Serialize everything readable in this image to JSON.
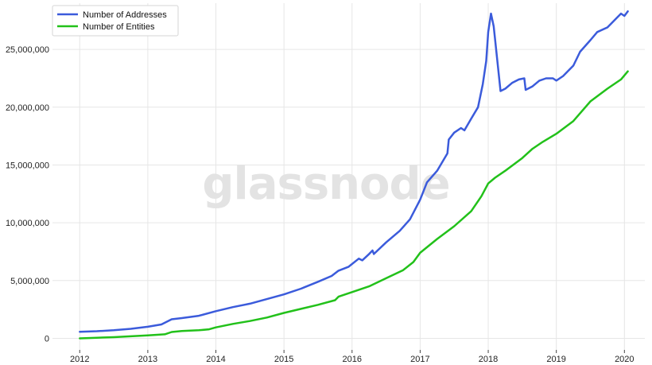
{
  "watermark": "glassnode",
  "chart_data": {
    "type": "line",
    "title": "",
    "xlabel": "",
    "ylabel": "",
    "xlim": [
      2011.6,
      2020.3
    ],
    "ylim": [
      -1000000,
      29000000
    ],
    "grid": true,
    "legend_position": "top-left",
    "x_ticks": [
      "2012",
      "2013",
      "2014",
      "2015",
      "2016",
      "2017",
      "2018",
      "2019",
      "2020"
    ],
    "y_ticks": [
      {
        "value": 0,
        "label": "0"
      },
      {
        "value": 5000000,
        "label": "5,000,000"
      },
      {
        "value": 10000000,
        "label": "10,000,000"
      },
      {
        "value": 15000000,
        "label": "15,000,000"
      },
      {
        "value": 20000000,
        "label": "20,000,000"
      },
      {
        "value": 25000000,
        "label": "25,000,000"
      }
    ],
    "series": [
      {
        "name": "Number of Addresses",
        "color": "#3b5bdb",
        "points": [
          [
            2012.0,
            570000
          ],
          [
            2012.25,
            620000
          ],
          [
            2012.5,
            700000
          ],
          [
            2012.75,
            820000
          ],
          [
            2013.0,
            1000000
          ],
          [
            2013.2,
            1200000
          ],
          [
            2013.35,
            1650000
          ],
          [
            2013.5,
            1750000
          ],
          [
            2013.75,
            1950000
          ],
          [
            2014.0,
            2350000
          ],
          [
            2014.25,
            2700000
          ],
          [
            2014.5,
            3000000
          ],
          [
            2014.75,
            3400000
          ],
          [
            2015.0,
            3800000
          ],
          [
            2015.25,
            4300000
          ],
          [
            2015.5,
            4900000
          ],
          [
            2015.7,
            5400000
          ],
          [
            2015.8,
            5850000
          ],
          [
            2015.95,
            6200000
          ],
          [
            2016.1,
            6900000
          ],
          [
            2016.15,
            6750000
          ],
          [
            2016.25,
            7300000
          ],
          [
            2016.3,
            7600000
          ],
          [
            2016.32,
            7300000
          ],
          [
            2016.5,
            8300000
          ],
          [
            2016.7,
            9300000
          ],
          [
            2016.85,
            10300000
          ],
          [
            2017.0,
            12000000
          ],
          [
            2017.1,
            13500000
          ],
          [
            2017.25,
            14500000
          ],
          [
            2017.4,
            16000000
          ],
          [
            2017.42,
            17200000
          ],
          [
            2017.5,
            17800000
          ],
          [
            2017.6,
            18200000
          ],
          [
            2017.65,
            18000000
          ],
          [
            2017.75,
            19000000
          ],
          [
            2017.85,
            20000000
          ],
          [
            2017.92,
            22000000
          ],
          [
            2017.97,
            24000000
          ],
          [
            2018.0,
            26500000
          ],
          [
            2018.04,
            28100000
          ],
          [
            2018.08,
            27000000
          ],
          [
            2018.13,
            24200000
          ],
          [
            2018.18,
            21400000
          ],
          [
            2018.25,
            21600000
          ],
          [
            2018.35,
            22100000
          ],
          [
            2018.45,
            22400000
          ],
          [
            2018.53,
            22500000
          ],
          [
            2018.55,
            21500000
          ],
          [
            2018.65,
            21800000
          ],
          [
            2018.75,
            22300000
          ],
          [
            2018.85,
            22500000
          ],
          [
            2018.95,
            22500000
          ],
          [
            2019.0,
            22300000
          ],
          [
            2019.1,
            22700000
          ],
          [
            2019.25,
            23600000
          ],
          [
            2019.35,
            24800000
          ],
          [
            2019.5,
            25800000
          ],
          [
            2019.6,
            26500000
          ],
          [
            2019.75,
            26900000
          ],
          [
            2019.85,
            27500000
          ],
          [
            2019.95,
            28100000
          ],
          [
            2020.0,
            27900000
          ],
          [
            2020.05,
            28300000
          ]
        ]
      },
      {
        "name": "Number of Entities",
        "color": "#22c11a",
        "points": [
          [
            2012.0,
            0
          ],
          [
            2012.25,
            50000
          ],
          [
            2012.5,
            100000
          ],
          [
            2012.75,
            180000
          ],
          [
            2013.0,
            250000
          ],
          [
            2013.25,
            350000
          ],
          [
            2013.35,
            550000
          ],
          [
            2013.5,
            630000
          ],
          [
            2013.75,
            700000
          ],
          [
            2013.9,
            780000
          ],
          [
            2014.0,
            950000
          ],
          [
            2014.25,
            1250000
          ],
          [
            2014.5,
            1500000
          ],
          [
            2014.75,
            1800000
          ],
          [
            2015.0,
            2200000
          ],
          [
            2015.25,
            2550000
          ],
          [
            2015.5,
            2900000
          ],
          [
            2015.75,
            3300000
          ],
          [
            2015.8,
            3600000
          ],
          [
            2016.0,
            4000000
          ],
          [
            2016.25,
            4500000
          ],
          [
            2016.5,
            5200000
          ],
          [
            2016.75,
            5900000
          ],
          [
            2016.9,
            6600000
          ],
          [
            2017.0,
            7400000
          ],
          [
            2017.25,
            8600000
          ],
          [
            2017.5,
            9700000
          ],
          [
            2017.75,
            11000000
          ],
          [
            2017.9,
            12300000
          ],
          [
            2018.0,
            13400000
          ],
          [
            2018.1,
            13900000
          ],
          [
            2018.25,
            14500000
          ],
          [
            2018.5,
            15600000
          ],
          [
            2018.65,
            16400000
          ],
          [
            2018.8,
            17000000
          ],
          [
            2019.0,
            17700000
          ],
          [
            2019.25,
            18800000
          ],
          [
            2019.5,
            20500000
          ],
          [
            2019.75,
            21600000
          ],
          [
            2019.95,
            22400000
          ],
          [
            2020.05,
            23100000
          ]
        ]
      }
    ]
  }
}
